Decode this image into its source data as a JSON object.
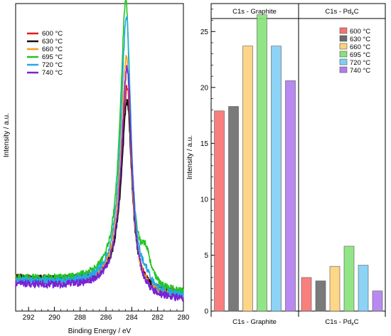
{
  "chart_data": [
    {
      "type": "line",
      "xlabel": "Binding Energy / eV",
      "ylabel": "Intensity / a.u.",
      "xlim": [
        293,
        280
      ],
      "x_reversed": true,
      "xticks": [
        "292",
        "290",
        "288",
        "286",
        "284",
        "282",
        "280"
      ],
      "yticks_labeled": false,
      "legend_position": "top-left",
      "colors": [
        "#e31a1c",
        "#111111",
        "#f0a020",
        "#22c422",
        "#22a9e6",
        "#7a22d6"
      ],
      "series": [
        {
          "name": "600 °C",
          "peak_x": 284.35,
          "peak_height": 0.68,
          "shoulder_282_9": 0.0,
          "tail_height": 0.02
        },
        {
          "name": "630 °C",
          "peak_x": 284.35,
          "peak_height": 0.63,
          "shoulder_282_9": 0.0,
          "tail_height": 0.02
        },
        {
          "name": "660 °C",
          "peak_x": 284.4,
          "peak_height": 0.79,
          "shoulder_282_9": 0.0,
          "tail_height": 0.01
        },
        {
          "name": "695 °C",
          "peak_x": 284.45,
          "peak_height": 0.97,
          "shoulder_282_9": 0.1,
          "tail_height": 0.02
        },
        {
          "name": "720 °C",
          "peak_x": 284.4,
          "peak_height": 0.93,
          "shoulder_282_9": 0.03,
          "tail_height": 0.01
        },
        {
          "name": "740 °C",
          "peak_x": 284.35,
          "peak_height": 0.77,
          "shoulder_282_9": 0.0,
          "tail_height": 0.0
        }
      ]
    },
    {
      "type": "bar",
      "ylabel": "Intensity / a.u.",
      "ylim": [
        0,
        27.5
      ],
      "yticks": [
        "0",
        "5",
        "10",
        "15",
        "20",
        "25"
      ],
      "groups": [
        "C1s - Graphite",
        "C1s - PdxC"
      ],
      "legend_position": "top-right",
      "series": [
        {
          "name": "600 °C",
          "color": "#f87171",
          "values": [
            17.9,
            3.0
          ]
        },
        {
          "name": "630 °C",
          "color": "#6b6b6b",
          "values": [
            18.3,
            2.7
          ]
        },
        {
          "name": "660 °C",
          "color": "#fdd27a",
          "values": [
            23.7,
            4.0
          ]
        },
        {
          "name": "695 °C",
          "color": "#86e27a",
          "values": [
            26.5,
            5.8
          ]
        },
        {
          "name": "720 °C",
          "color": "#7fcef5",
          "values": [
            23.7,
            4.1
          ]
        },
        {
          "name": "740 °C",
          "color": "#b17cf1",
          "values": [
            20.6,
            1.8
          ]
        }
      ]
    }
  ]
}
